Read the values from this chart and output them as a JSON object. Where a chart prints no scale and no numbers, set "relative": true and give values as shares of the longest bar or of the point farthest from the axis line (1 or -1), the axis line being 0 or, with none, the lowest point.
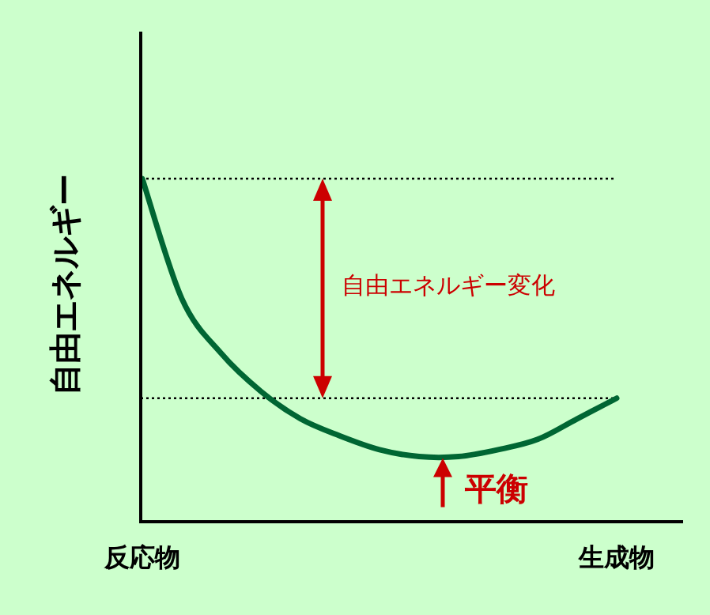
{
  "chart_data": {
    "type": "line",
    "relative": true,
    "ylabel": "自由エネルギー",
    "categories": [
      "反応物",
      null,
      null,
      null,
      null,
      null,
      null,
      null,
      null,
      null,
      null,
      null,
      "生成物"
    ],
    "series": [
      {
        "color": "#006633",
        "values": [
          1,
          0.65,
          0.49,
          0.38,
          0.3,
          0.25,
          0.21,
          0.19,
          0.19,
          0.21,
          0.24,
          0.3,
          0.36
        ]
      }
    ],
    "ref_lines": [
      {
        "axis": "y",
        "value": 1,
        "color": "#000000",
        "line_style": "dotted"
      },
      {
        "axis": "y",
        "value": 0.36,
        "color": "#000000",
        "line_style": "dotted"
      }
    ],
    "annotations": [
      "自由エネルギー変化",
      {
        "text": "平衡",
        "y": 0.19
      }
    ],
    "marker": "none",
    "line_style": "solid",
    "grid": false
  }
}
